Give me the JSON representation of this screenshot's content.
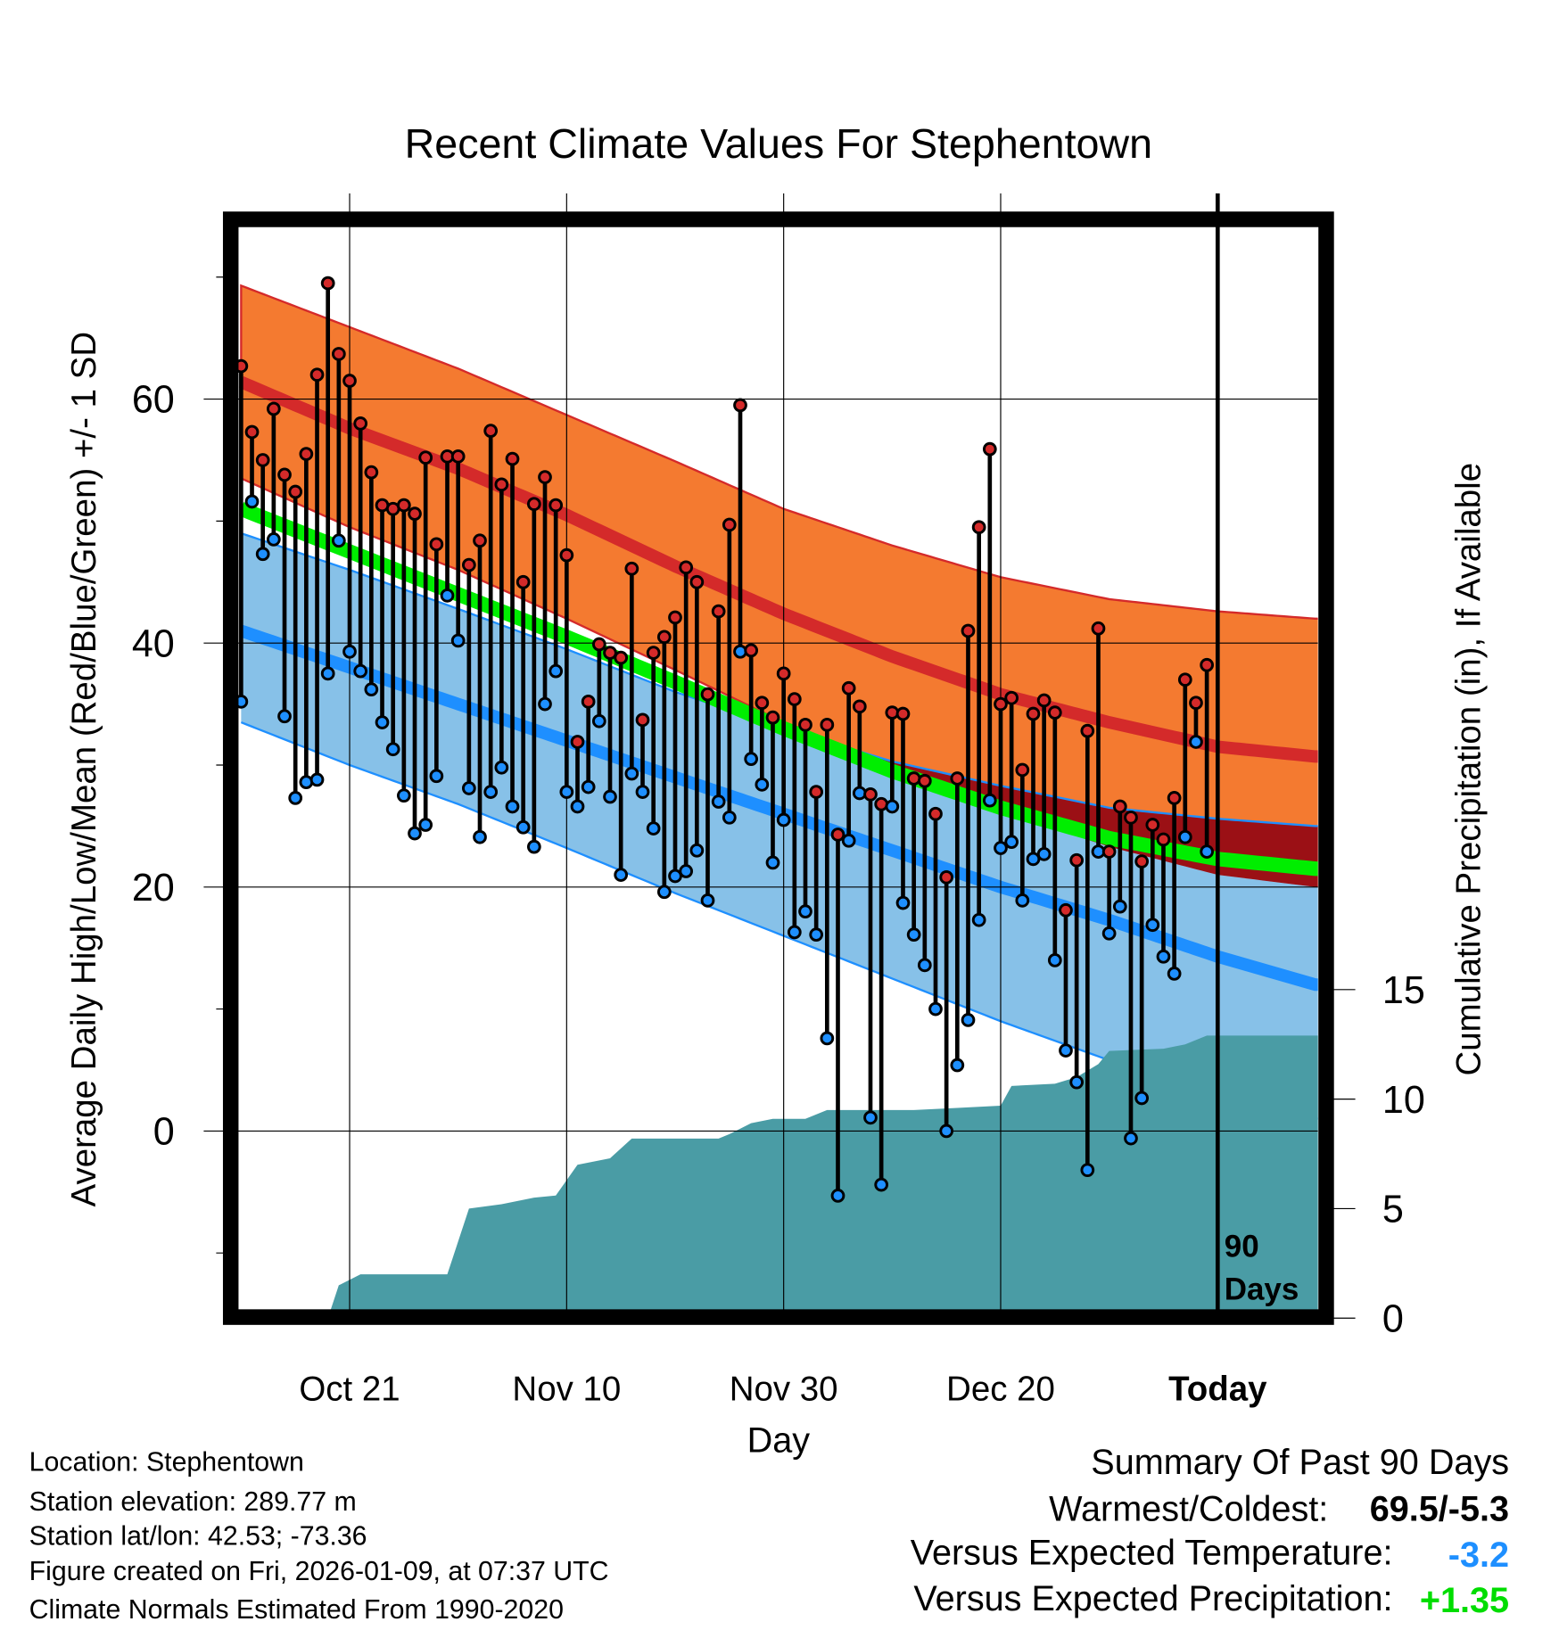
{
  "chart_data": {
    "type": "line",
    "title": "Recent Climate Values For Stephentown",
    "xlabel": "Day",
    "ylabel": "Average Daily High/Low/Mean (Red/Blue/Green) +/- 1 SD",
    "y2label": "Cumulative Precipitation (in), If Available",
    "x_ticks": [
      {
        "day": 10,
        "label": "Oct 21"
      },
      {
        "day": 30,
        "label": "Nov 10"
      },
      {
        "day": 50,
        "label": "Nov 30"
      },
      {
        "day": 70,
        "label": "Dec 20"
      },
      {
        "day": 90,
        "label": "Today"
      }
    ],
    "xlim": [
      0,
      99
    ],
    "y_ticks": [
      "0",
      "20",
      "40",
      "60"
    ],
    "ylim": [
      -14.5,
      75
    ],
    "y2_ticks": [
      "0",
      "5",
      "10",
      "15"
    ],
    "y2lim": [
      0,
      49.4
    ],
    "grid": true,
    "today_marker_label": [
      "90",
      "Days"
    ],
    "observed": {
      "high": [
        62.7,
        57.3,
        55.0,
        59.2,
        53.8,
        52.4,
        55.5,
        62.0,
        69.5,
        63.7,
        61.5,
        58.0,
        54.0,
        51.3,
        51.0,
        51.3,
        50.6,
        55.2,
        48.1,
        55.3,
        55.3,
        46.4,
        48.4,
        57.4,
        53.0,
        55.1,
        45.0,
        51.4,
        53.6,
        51.3,
        47.2,
        31.9,
        35.2,
        39.9,
        39.2,
        38.8,
        46.1,
        33.7,
        39.2,
        40.5,
        42.1,
        46.2,
        45.0,
        35.8,
        42.6,
        49.7,
        59.5,
        39.4,
        35.1,
        33.9,
        37.5,
        35.4,
        33.3,
        27.8,
        33.3,
        24.3,
        36.3,
        34.8,
        27.6,
        26.8,
        34.3,
        34.2,
        28.9,
        28.7,
        26.0,
        20.8,
        28.9,
        41.0,
        49.5,
        55.9,
        35.0,
        35.5,
        29.6,
        34.2,
        35.3,
        34.3,
        18.1,
        22.2,
        32.8,
        41.2,
        22.9,
        26.6,
        25.7,
        22.1,
        25.1,
        23.9,
        27.3,
        37.0,
        35.1,
        38.2
      ],
      "low": [
        35.2,
        51.6,
        47.3,
        48.5,
        34.0,
        27.3,
        28.6,
        28.8,
        37.5,
        48.4,
        39.3,
        37.7,
        36.2,
        33.5,
        31.3,
        27.5,
        24.4,
        25.1,
        29.1,
        43.9,
        40.2,
        28.1,
        24.1,
        27.8,
        29.8,
        26.6,
        24.9,
        23.3,
        35.0,
        37.7,
        27.8,
        26.6,
        28.2,
        33.6,
        27.4,
        21.0,
        29.3,
        27.8,
        24.8,
        19.6,
        20.9,
        21.3,
        23.0,
        18.9,
        27.0,
        25.7,
        39.3,
        30.5,
        28.4,
        22.0,
        25.5,
        16.3,
        18.0,
        16.1,
        7.6,
        -5.3,
        23.8,
        27.7,
        1.1,
        -4.4,
        26.6,
        18.7,
        16.1,
        13.6,
        10.0,
        0.0,
        5.4,
        9.1,
        17.3,
        27.1,
        23.2,
        23.7,
        18.9,
        22.3,
        22.7,
        14.0,
        6.6,
        4.0,
        -3.2,
        22.9,
        16.2,
        18.4,
        -0.6,
        2.7,
        16.9,
        14.3,
        12.9,
        24.1,
        31.9,
        22.9
      ]
    },
    "normals": {
      "days": [
        0,
        10,
        20,
        30,
        40,
        50,
        60,
        70,
        80,
        90,
        99
      ],
      "high_plus_sd": [
        69.3,
        65.9,
        62.5,
        58.7,
        54.9,
        51.0,
        48.0,
        45.4,
        43.6,
        42.6,
        42.0
      ],
      "high_mean": [
        61.4,
        57.6,
        54.3,
        50.5,
        46.3,
        42.4,
        38.9,
        35.8,
        33.5,
        31.5,
        30.7
      ],
      "high_minus_sd": [
        53.5,
        49.5,
        46.0,
        42.0,
        37.8,
        33.5,
        29.6,
        26.2,
        23.3,
        21.0,
        20.0
      ],
      "mean": [
        51.0,
        47.5,
        44.0,
        40.5,
        36.8,
        33.0,
        29.5,
        26.5,
        24.0,
        22.3,
        21.5
      ],
      "low_plus_sd": [
        49.0,
        46.0,
        42.8,
        39.5,
        36.0,
        33.0,
        30.3,
        28.3,
        26.5,
        25.6,
        25.0
      ],
      "low_mean": [
        41.0,
        38.0,
        35.0,
        32.0,
        29.0,
        26.0,
        23.0,
        20.0,
        17.3,
        14.3,
        12.0
      ],
      "low_minus_sd": [
        33.5,
        30.0,
        26.8,
        23.2,
        19.5,
        16.0,
        12.5,
        9.0,
        5.8,
        3.0,
        1.0
      ]
    },
    "precipitation_cumulative": {
      "days": [
        0,
        8,
        9,
        11,
        19,
        20,
        21,
        24,
        27,
        29,
        31,
        34,
        36,
        44,
        45,
        47,
        49,
        52,
        54,
        62,
        66,
        70,
        71,
        75,
        77,
        79,
        80,
        85,
        87,
        89,
        99
      ],
      "inches": [
        0,
        0,
        1.5,
        2.0,
        2.0,
        3.5,
        5.0,
        5.2,
        5.5,
        5.6,
        7.0,
        7.3,
        8.2,
        8.2,
        8.4,
        8.9,
        9.1,
        9.1,
        9.5,
        9.5,
        9.6,
        9.7,
        10.6,
        10.7,
        11.0,
        11.6,
        12.2,
        12.3,
        12.5,
        12.9,
        12.9
      ]
    }
  },
  "colors": {
    "high_sd_band": "#F47A30",
    "high_mean_line": "#D42A2A",
    "overlap_band": "#9B1015",
    "mean_line": "#00EE00",
    "low_sd_band": "#87C1E8",
    "low_mean_line": "#1E8FFF",
    "precip_fill": "#4A9CA5",
    "high_marker": "#D42A2A",
    "low_marker": "#1E8FFF",
    "temp_anomaly": "#1E8FFF",
    "precip_anomaly": "#00DD00"
  },
  "footer": {
    "location": "Location: Stephentown",
    "elevation": "Station elevation: 289.77 m",
    "latlon": "Station lat/lon: 42.53; -73.36",
    "created": "Figure created on Fri, 2026-01-09, at 07:37 UTC",
    "normals": "Climate Normals Estimated From 1990-2020"
  },
  "summary": {
    "heading": "Summary Of Past 90 Days",
    "warmest_coldest_label": "Warmest/Coldest:",
    "warmest_coldest_value": "69.5/-5.3",
    "temp_label": "Versus Expected Temperature:",
    "temp_value": "-3.2",
    "precip_label": "Versus Expected Precipitation:",
    "precip_value": "+1.35"
  }
}
